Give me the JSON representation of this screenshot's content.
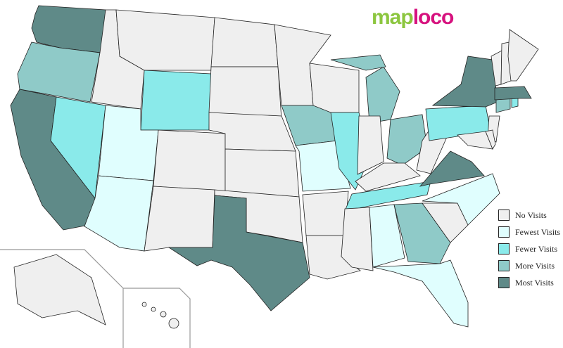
{
  "logo": {
    "part1": "map",
    "part2": "loco"
  },
  "legend": [
    {
      "key": "none",
      "label": "No Visits",
      "color": "#efefef"
    },
    {
      "key": "fewest",
      "label": "Fewest Visits",
      "color": "#e0fefe"
    },
    {
      "key": "fewer",
      "label": "Fewer Visits",
      "color": "#8aeaea"
    },
    {
      "key": "more",
      "label": "More Visits",
      "color": "#8fcac8"
    },
    {
      "key": "most",
      "label": "Most Visits",
      "color": "#5f8a88"
    }
  ],
  "states": {
    "WA": "most",
    "OR": "more",
    "CA": "most",
    "NV": "fewer",
    "ID": "none",
    "MT": "none",
    "WY": "fewer",
    "UT": "fewest",
    "AZ": "fewest",
    "CO": "none",
    "NM": "none",
    "ND": "none",
    "SD": "none",
    "NE": "none",
    "KS": "none",
    "OK": "none",
    "TX": "most",
    "MN": "none",
    "IA": "more",
    "MO": "fewest",
    "AR": "none",
    "LA": "none",
    "WI": "none",
    "IL": "fewer",
    "MI": "more",
    "IN": "none",
    "OH": "more",
    "KY": "none",
    "TN": "fewer",
    "MS": "none",
    "AL": "fewest",
    "GA": "more",
    "FL": "fewest",
    "SC": "none",
    "NC": "fewest",
    "VA": "most",
    "WV": "none",
    "PA": "fewer",
    "NY": "most",
    "NJ": "none",
    "MD": "none",
    "DE": "none",
    "CT": "more",
    "RI": "fewer",
    "MA": "most",
    "VT": "none",
    "NH": "none",
    "ME": "none",
    "AK": "none",
    "HI": "none"
  }
}
